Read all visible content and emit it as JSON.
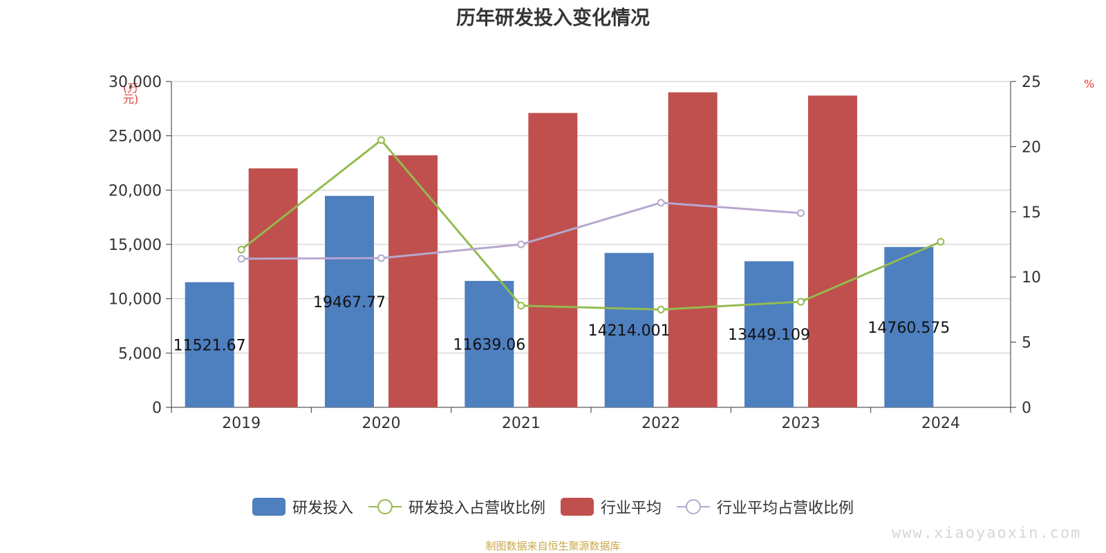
{
  "chart_data": {
    "type": "bar",
    "title": "历年研发投入变化情况",
    "categories": [
      "2019",
      "2020",
      "2021",
      "2022",
      "2023",
      "2024"
    ],
    "y_left": {
      "label": "(万元)",
      "range": [
        0,
        30000
      ],
      "ticks": [
        "0",
        "5,000",
        "10,000",
        "15,000",
        "20,000",
        "25,000",
        "30,000"
      ]
    },
    "y_right": {
      "label": "%",
      "range": [
        0,
        25
      ],
      "ticks": [
        "0",
        "5",
        "10",
        "15",
        "20",
        "25"
      ]
    },
    "grid": true,
    "legend_position": "bottom",
    "series": [
      {
        "name": "研发投入",
        "kind": "bar",
        "axis": "left",
        "color": "#4e7fbf",
        "values": [
          11521.67,
          19467.77,
          11639.06,
          14214.001,
          13449.109,
          14760.575
        ],
        "labels": [
          "11521.67",
          "19467.77",
          "11639.06",
          "14214.001",
          "13449.109",
          "14760.575"
        ]
      },
      {
        "name": "研发投入占营收比例",
        "kind": "line",
        "axis": "right",
        "color": "#93bb4f",
        "values": [
          12.1,
          20.5,
          7.8,
          7.5,
          8.1,
          12.7
        ]
      },
      {
        "name": "行业平均",
        "kind": "bar",
        "axis": "left",
        "color": "#c0504d",
        "values": [
          22000,
          23200,
          27100,
          29000,
          28700,
          null
        ]
      },
      {
        "name": "行业平均占营收比例",
        "kind": "line",
        "axis": "right",
        "color": "#b7a7d0",
        "values": [
          11.4,
          11.45,
          12.5,
          15.7,
          14.9,
          null
        ]
      }
    ]
  },
  "footer": "制图数据来自恒生聚源数据库",
  "watermark": "www.xiaoyaoxin.com"
}
